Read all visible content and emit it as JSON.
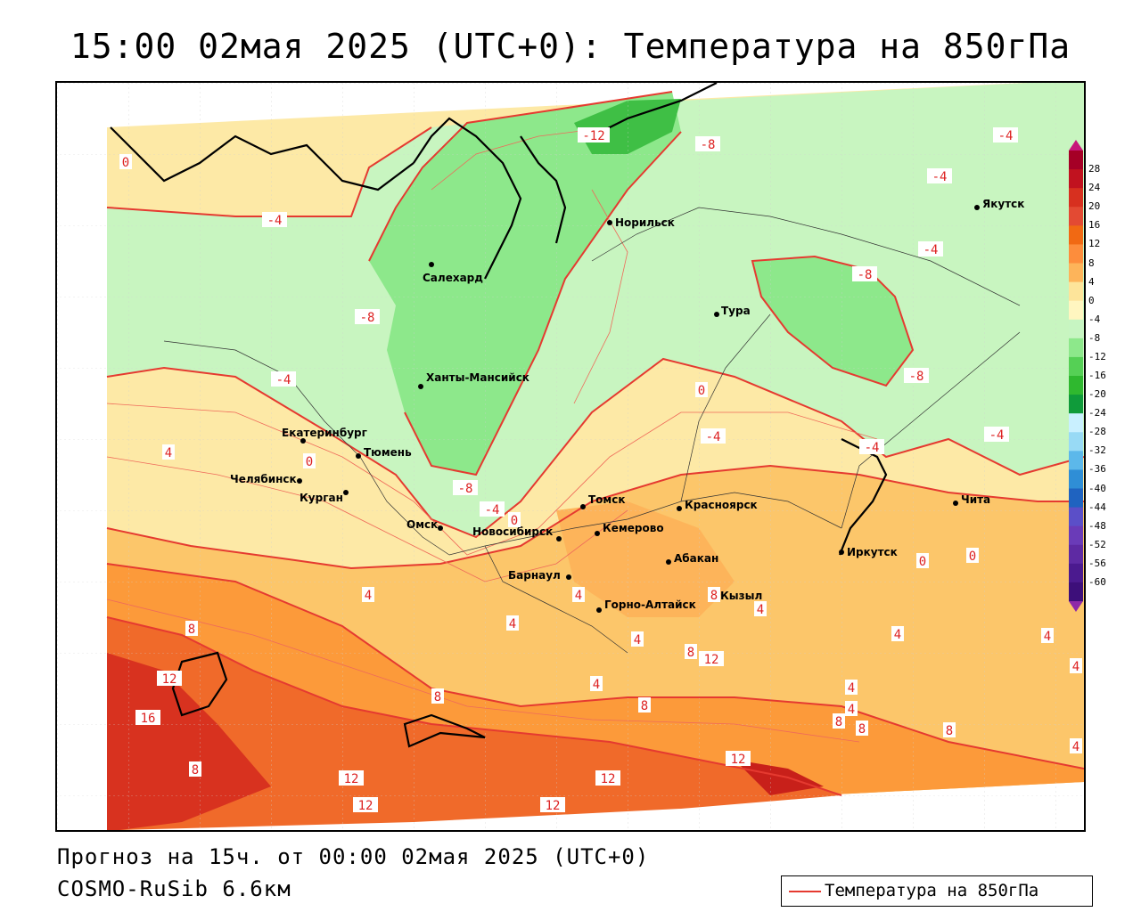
{
  "title": "15:00 02мая 2025 (UTC+0): Температура на 850гПа",
  "footer": {
    "line1": "Прогноз на 15ч. от 00:00 02мая 2025 (UTC+0)",
    "line2": "COSMO-RuSib 6.6км"
  },
  "legend": {
    "label": "Температура на 850гПа",
    "line_color": "#e53a30"
  },
  "colorbar": {
    "labels": [
      "28",
      "24",
      "20",
      "16",
      "12",
      "8",
      "4",
      "0",
      "-4",
      "-8",
      "-12",
      "-16",
      "-20",
      "-24",
      "-28",
      "-32",
      "-36",
      "-40",
      "-44",
      "-48",
      "-52",
      "-56",
      "-60"
    ],
    "colors": [
      "#a50026",
      "#c1121f",
      "#d7301f",
      "#e34a33",
      "#f16913",
      "#fd8d3c",
      "#fdb45a",
      "#fde49a",
      "#fff6c0",
      "#c7f5c2",
      "#8de88b",
      "#55d055",
      "#2fb82f",
      "#0f9b3a",
      "#c9f0ff",
      "#98daf5",
      "#5cb8ea",
      "#2f8ed6",
      "#1f63c0",
      "#5b4fc8",
      "#6a3bb8",
      "#5e2aa3",
      "#4b1a8f",
      "#3d0f7a"
    ]
  },
  "cities": [
    {
      "name": "Салехард"
    },
    {
      "name": "Норильск"
    },
    {
      "name": "Якутск"
    },
    {
      "name": "Тура"
    },
    {
      "name": "Ханты-Мансийск"
    },
    {
      "name": "Екатеринбург"
    },
    {
      "name": "Тюмень"
    },
    {
      "name": "Челябинск"
    },
    {
      "name": "Курган"
    },
    {
      "name": "Омск"
    },
    {
      "name": "Новосибирск"
    },
    {
      "name": "Томск"
    },
    {
      "name": "Кемерово"
    },
    {
      "name": "Красноярск"
    },
    {
      "name": "Барнаул"
    },
    {
      "name": "Абакан"
    },
    {
      "name": "Горно-Алтайск"
    },
    {
      "name": "Кызыл"
    },
    {
      "name": "Иркутск"
    },
    {
      "name": "Чита"
    }
  ],
  "isotherm_labels": [
    "0",
    "-4",
    "-8",
    "-12",
    "-8",
    "-4",
    "-4",
    "-4",
    "-8",
    "-8",
    "-4",
    "-4",
    "0",
    "-4",
    "-8",
    "-4",
    "4",
    "0",
    "0",
    "-4",
    "4",
    "0",
    "4",
    "4",
    "4",
    "0",
    "8",
    "8",
    "4",
    "4",
    "12",
    "16",
    "8",
    "4",
    "8",
    "8",
    "12",
    "12",
    "12",
    "12",
    "12",
    "12",
    "4",
    "4",
    "8",
    "8",
    "4",
    "4",
    "8",
    "8",
    "4"
  ]
}
